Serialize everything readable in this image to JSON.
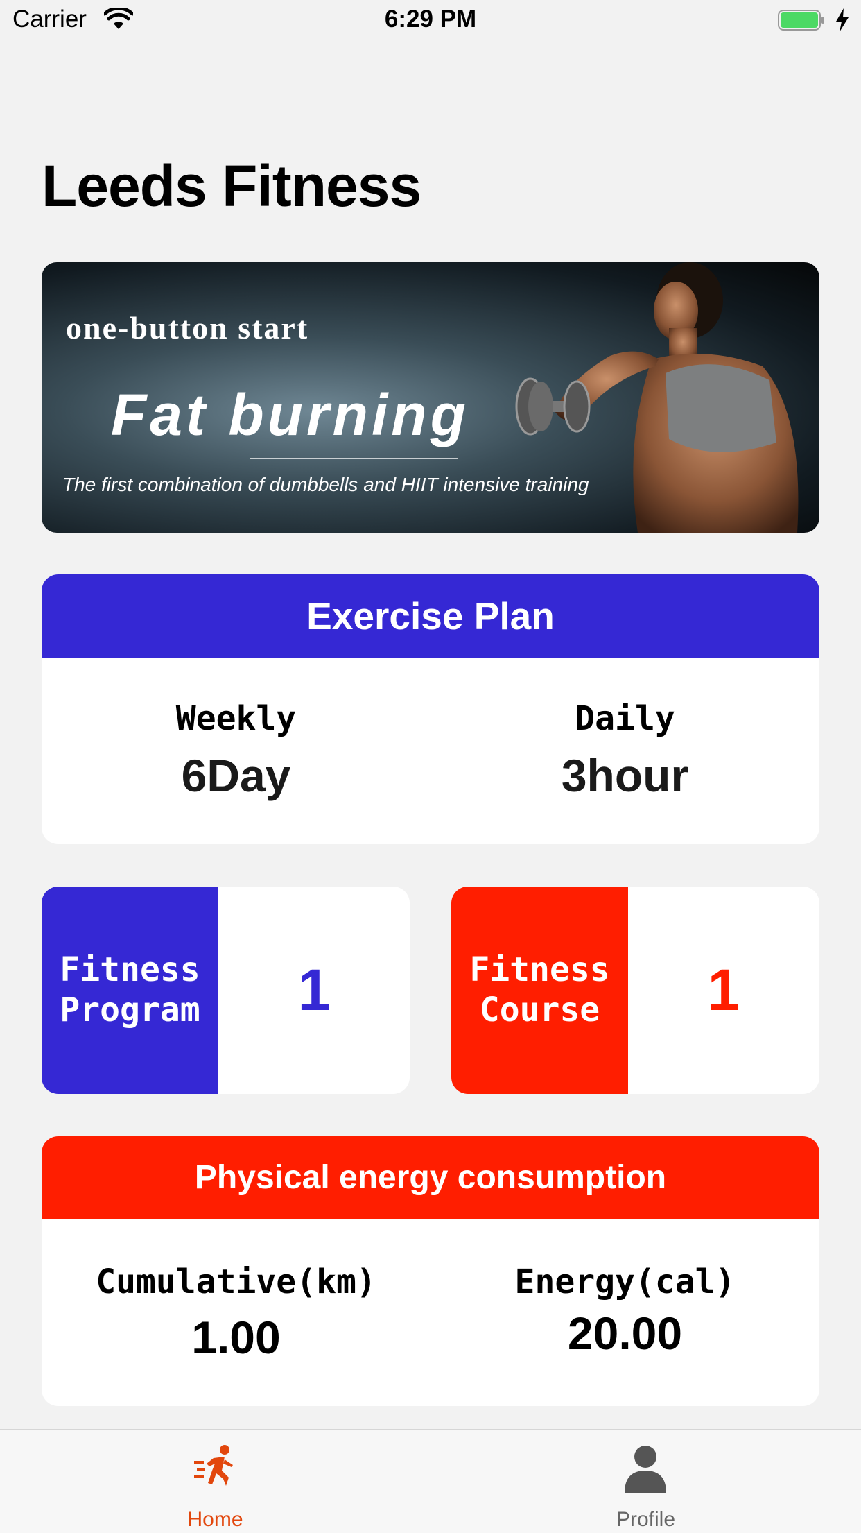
{
  "status_bar": {
    "carrier": "Carrier",
    "time": "6:29 PM"
  },
  "page_title": "Leeds Fitness",
  "banner": {
    "line1": "one-button start",
    "line2": "Fat burning",
    "line3": "The first combination of dumbbells and HIIT intensive training"
  },
  "exercise_plan": {
    "title": "Exercise Plan",
    "weekly_label": "Weekly",
    "weekly_value": "6Day",
    "daily_label": "Daily",
    "daily_value": "3hour"
  },
  "fitness_program": {
    "label": "Fitness\nProgram",
    "value": "1"
  },
  "fitness_course": {
    "label": "Fitness\nCourse",
    "value": "1"
  },
  "energy": {
    "title": "Physical energy consumption",
    "distance_label": "Cumulative(km)",
    "distance_value": "1.00",
    "energy_label": "Energy(cal)",
    "energy_value": "20.00"
  },
  "tabs": [
    {
      "label": "Home",
      "icon": "running-person-icon"
    },
    {
      "label": "Profile",
      "icon": "person-silhouette-icon"
    }
  ],
  "colors": {
    "blue": "#3528d4",
    "red": "#ff1e00",
    "active_tab": "#e2470d",
    "inactive_tab": "#666666",
    "background": "#f2f2f2"
  }
}
